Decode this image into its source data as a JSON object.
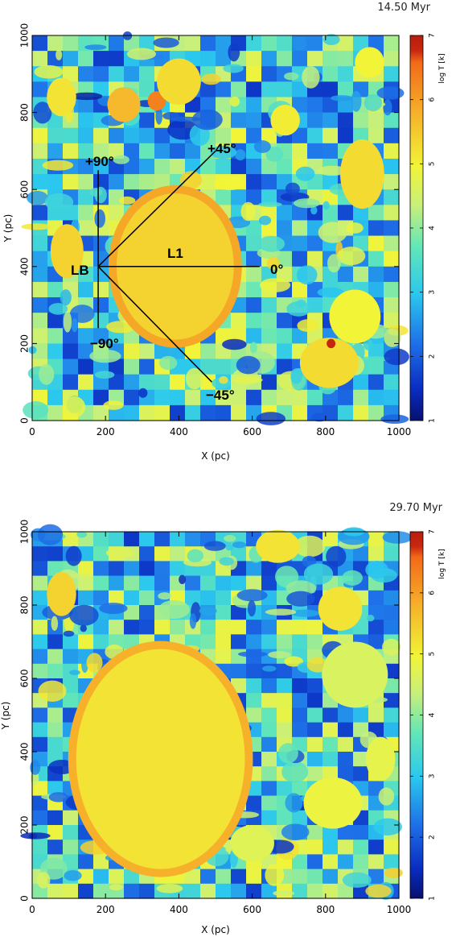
{
  "chart_data": [
    {
      "type": "heatmap",
      "time_label": "14.50 Myr",
      "xlabel": "X (pc)",
      "ylabel": "Y (pc)",
      "xlim": [
        0,
        1000
      ],
      "ylim": [
        0,
        1000
      ],
      "xticks": [
        "0",
        "200",
        "400",
        "600",
        "800",
        "1000"
      ],
      "yticks": [
        "0",
        "200",
        "400",
        "600",
        "800",
        "1000"
      ],
      "colorbar": {
        "label": "log T [k]",
        "range": [
          1,
          7
        ],
        "ticks": [
          "1",
          "2",
          "3",
          "4",
          "5",
          "6",
          "7"
        ]
      },
      "annotations": {
        "lb": "LB",
        "l1": "L1",
        "p90": "+90°",
        "p45": "+45°",
        "zero": "0°",
        "m45": "−45°",
        "m90": "−90°"
      },
      "origin": [
        180,
        400
      ],
      "rays": [
        {
          "to": [
            180,
            650
          ]
        },
        {
          "to": [
            500,
            700
          ]
        },
        {
          "to": [
            620,
            400
          ]
        },
        {
          "to": [
            490,
            100
          ]
        },
        {
          "to": [
            180,
            240
          ]
        }
      ],
      "bubbles": [
        {
          "cx": 390,
          "cy": 400,
          "rx": 160,
          "ry": 190,
          "logT": 5.4,
          "rim": 5.9
        },
        {
          "cx": 810,
          "cy": 150,
          "rx": 80,
          "ry": 65,
          "logT": 5.3
        },
        {
          "cx": 250,
          "cy": 820,
          "rx": 45,
          "ry": 45,
          "logT": 5.7
        },
        {
          "cx": 340,
          "cy": 830,
          "rx": 25,
          "ry": 25,
          "logT": 6.3
        },
        {
          "cx": 400,
          "cy": 880,
          "rx": 60,
          "ry": 60,
          "logT": 5.3
        },
        {
          "cx": 80,
          "cy": 840,
          "rx": 40,
          "ry": 50,
          "logT": 5.2
        },
        {
          "cx": 900,
          "cy": 640,
          "rx": 60,
          "ry": 90,
          "logT": 5.3
        },
        {
          "cx": 880,
          "cy": 270,
          "rx": 70,
          "ry": 70,
          "logT": 5.0
        },
        {
          "cx": 95,
          "cy": 440,
          "rx": 45,
          "ry": 70,
          "logT": 5.4
        },
        {
          "cx": 690,
          "cy": 780,
          "rx": 40,
          "ry": 40,
          "logT": 5.1
        },
        {
          "cx": 920,
          "cy": 930,
          "rx": 40,
          "ry": 40,
          "logT": 5.0
        },
        {
          "cx": 815,
          "cy": 200,
          "rx": 12,
          "ry": 12,
          "logT": 6.8
        }
      ]
    },
    {
      "type": "heatmap",
      "time_label": "29.70 Myr",
      "xlabel": "X (pc)",
      "ylabel": "Y (pc)",
      "xlim": [
        0,
        1000
      ],
      "ylim": [
        0,
        1000
      ],
      "xticks": [
        "0",
        "200",
        "400",
        "600",
        "800",
        "1000"
      ],
      "yticks": [
        "0",
        "200",
        "400",
        "600",
        "800",
        "1000"
      ],
      "colorbar": {
        "label": "log T [k]",
        "range": [
          1,
          7
        ],
        "ticks": [
          "1",
          "2",
          "3",
          "4",
          "5",
          "6",
          "7"
        ]
      },
      "bubbles": [
        {
          "cx": 350,
          "cy": 380,
          "rx": 230,
          "ry": 300,
          "logT": 5.2,
          "rim": 5.8
        },
        {
          "cx": 670,
          "cy": 960,
          "rx": 60,
          "ry": 45,
          "logT": 5.2
        },
        {
          "cx": 80,
          "cy": 830,
          "rx": 40,
          "ry": 60,
          "logT": 5.4
        },
        {
          "cx": 840,
          "cy": 790,
          "rx": 60,
          "ry": 60,
          "logT": 5.2
        },
        {
          "cx": 880,
          "cy": 610,
          "rx": 90,
          "ry": 90,
          "logT": 4.6
        },
        {
          "cx": 820,
          "cy": 260,
          "rx": 80,
          "ry": 70,
          "logT": 4.9
        },
        {
          "cx": 600,
          "cy": 150,
          "rx": 60,
          "ry": 50,
          "logT": 4.7
        },
        {
          "cx": 950,
          "cy": 380,
          "rx": 40,
          "ry": 60,
          "logT": 4.8
        }
      ]
    }
  ]
}
